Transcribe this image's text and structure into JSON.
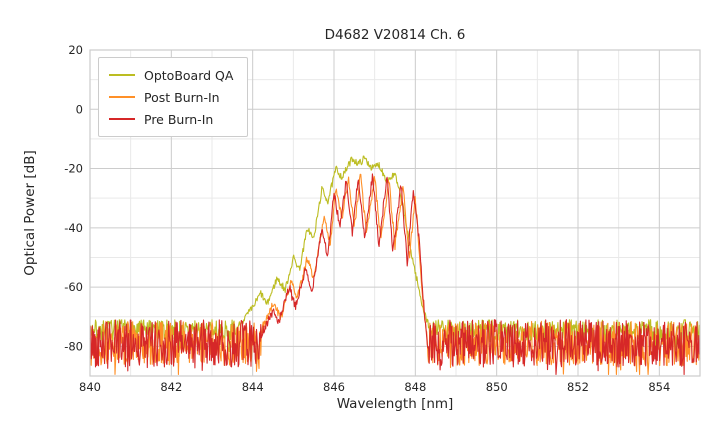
{
  "chart_data": {
    "type": "line",
    "title": "D4682 V20814 Ch. 6",
    "xlabel": "Wavelength [nm]",
    "ylabel": "Optical Power [dB]",
    "xlim": [
      840,
      855
    ],
    "ylim": [
      -90,
      20
    ],
    "xticks": [
      840,
      842,
      844,
      846,
      848,
      850,
      852,
      854
    ],
    "yticks": [
      20,
      0,
      -20,
      -40,
      -60,
      -80
    ],
    "grid": true,
    "grid_major_color": "#cccccc",
    "grid_minor_color": "#e9e9e9",
    "spine_color": "#cccccc",
    "legend_position": "upper-left",
    "sample_step": 0.015,
    "series": [
      {
        "name": "OptoBoard QA",
        "color": "#bcbd22",
        "seed": 7,
        "noise_base": -74.5,
        "noise_spread": 3.5,
        "noise_spike": 6,
        "ripple": 1.2,
        "noise_regions": [
          [
            840,
            843.6
          ],
          [
            848.35,
            855
          ]
        ],
        "envelope": [
          [
            843.6,
            -74
          ],
          [
            844.0,
            -67
          ],
          [
            844.2,
            -62
          ],
          [
            844.35,
            -66
          ],
          [
            844.6,
            -57
          ],
          [
            844.8,
            -61
          ],
          [
            845.0,
            -50
          ],
          [
            845.15,
            -54
          ],
          [
            845.35,
            -40
          ],
          [
            845.5,
            -44
          ],
          [
            845.7,
            -27
          ],
          [
            845.85,
            -31
          ],
          [
            846.05,
            -20
          ],
          [
            846.2,
            -23
          ],
          [
            846.45,
            -16.5
          ],
          [
            846.6,
            -18.5
          ],
          [
            846.75,
            -16.5
          ],
          [
            846.95,
            -20
          ],
          [
            847.1,
            -18.5
          ],
          [
            847.3,
            -24
          ],
          [
            847.5,
            -22
          ],
          [
            847.7,
            -33
          ],
          [
            847.85,
            -45
          ],
          [
            848.0,
            -55
          ],
          [
            848.15,
            -65
          ],
          [
            848.35,
            -74
          ]
        ]
      },
      {
        "name": "Post Burn-In",
        "color": "#ff9028",
        "seed": 13,
        "noise_base": -79,
        "noise_spread": 7.5,
        "noise_spike": 6,
        "ripple": 1.5,
        "noise_regions": [
          [
            840,
            844.2
          ],
          [
            848.3,
            855
          ]
        ],
        "envelope": [
          [
            844.2,
            -75
          ],
          [
            844.5,
            -66
          ],
          [
            844.7,
            -70
          ],
          [
            844.95,
            -58
          ],
          [
            845.1,
            -64
          ],
          [
            845.35,
            -50
          ],
          [
            845.5,
            -58
          ],
          [
            845.75,
            -36
          ],
          [
            845.9,
            -46
          ],
          [
            846.05,
            -26
          ],
          [
            846.2,
            -37
          ],
          [
            846.35,
            -23
          ],
          [
            846.5,
            -40
          ],
          [
            846.65,
            -22
          ],
          [
            846.8,
            -42
          ],
          [
            847.0,
            -22.5
          ],
          [
            847.15,
            -44
          ],
          [
            847.35,
            -24
          ],
          [
            847.5,
            -46
          ],
          [
            847.7,
            -26
          ],
          [
            847.85,
            -50
          ],
          [
            848.0,
            -30
          ],
          [
            848.1,
            -48
          ],
          [
            848.2,
            -68
          ],
          [
            848.3,
            -78
          ]
        ]
      },
      {
        "name": "Pre Burn-In",
        "color": "#d62728",
        "seed": 42,
        "noise_base": -79,
        "noise_spread": 8,
        "noise_spike": 6,
        "ripple": 1.5,
        "noise_regions": [
          [
            840,
            844.2
          ],
          [
            848.3,
            855
          ]
        ],
        "envelope": [
          [
            844.2,
            -76
          ],
          [
            844.5,
            -68
          ],
          [
            844.65,
            -72
          ],
          [
            844.9,
            -60
          ],
          [
            845.05,
            -67
          ],
          [
            845.3,
            -54
          ],
          [
            845.45,
            -62
          ],
          [
            845.7,
            -40
          ],
          [
            845.85,
            -50
          ],
          [
            846.0,
            -28
          ],
          [
            846.15,
            -40
          ],
          [
            846.3,
            -24
          ],
          [
            846.45,
            -42
          ],
          [
            846.6,
            -22.5
          ],
          [
            846.75,
            -44
          ],
          [
            846.95,
            -22
          ],
          [
            847.1,
            -46
          ],
          [
            847.3,
            -23
          ],
          [
            847.45,
            -48
          ],
          [
            847.65,
            -25
          ],
          [
            847.8,
            -52
          ],
          [
            847.95,
            -27
          ],
          [
            848.1,
            -45
          ],
          [
            848.2,
            -65
          ],
          [
            848.3,
            -80
          ]
        ]
      }
    ]
  }
}
